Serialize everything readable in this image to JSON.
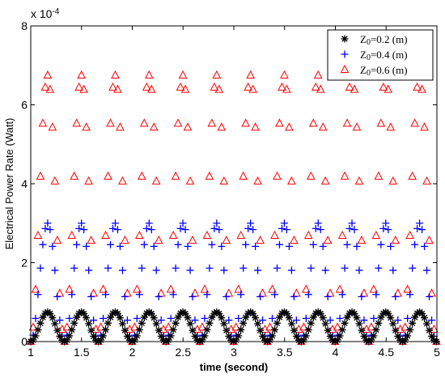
{
  "chart_data": {
    "type": "scatter",
    "xlabel": "time (second)",
    "ylabel": "Electrical Power Rate (Watt)",
    "y_exponent_label": "x 10",
    "y_exponent_power": "-4",
    "xlim": [
      1,
      5
    ],
    "ylim": [
      0,
      8
    ],
    "y_scale_factor": 0.0001,
    "x_ticks": [
      "1",
      "1.5",
      "2",
      "2.5",
      "3",
      "3.5",
      "4",
      "4.5",
      "5"
    ],
    "y_ticks": [
      "0",
      "2",
      "4",
      "6",
      "8"
    ],
    "grid": false,
    "legend_position": "top-right",
    "series": [
      {
        "name": "Z0=0.2 (m)",
        "legend_main": "Z",
        "legend_sub": "0",
        "legend_rest": "=0.2 (m)",
        "marker": "star",
        "color": "#000000",
        "peak": 0.75,
        "period": 0.333,
        "samples_per_period": 14
      },
      {
        "name": "Z0=0.4 (m)",
        "legend_main": "Z",
        "legend_sub": "0",
        "legend_rest": "=0.4 (m)",
        "marker": "plus",
        "color": "#0000ff",
        "peak": 3.0,
        "period": 0.333,
        "samples_per_period": 14
      },
      {
        "name": "Z0=0.6 (m)",
        "legend_main": "Z",
        "legend_sub": "0",
        "legend_rest": "=0.6 (m)",
        "marker": "triangle",
        "color": "#ff0000",
        "peak": 6.75,
        "period": 0.333,
        "samples_per_period": 14
      }
    ]
  }
}
